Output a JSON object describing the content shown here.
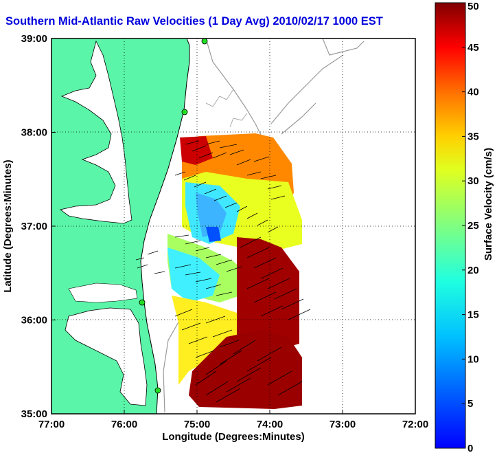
{
  "chart_data": {
    "type": "heatmap",
    "title": "Southern Mid-Atlantic Raw Velocities (1 Day Avg) 2010/02/17 1000 EST",
    "xlabel": "Longitude (Degrees:Minutes)",
    "ylabel": "Latitude (Degrees:Minutes)",
    "colorbar_label": "Surface Velocity (cm/s)",
    "xlim": [
      -77,
      -72
    ],
    "ylim": [
      35,
      39
    ],
    "x_ticks": [
      {
        "value": -77,
        "label": "77:00"
      },
      {
        "value": -76,
        "label": "76:00"
      },
      {
        "value": -75,
        "label": "75:00"
      },
      {
        "value": -74,
        "label": "74:00"
      },
      {
        "value": -73,
        "label": "73:00"
      },
      {
        "value": -72,
        "label": "72:00"
      }
    ],
    "y_ticks": [
      {
        "value": 35,
        "label": "35:00"
      },
      {
        "value": 36,
        "label": "36:00"
      },
      {
        "value": 37,
        "label": "37:00"
      },
      {
        "value": 38,
        "label": "38:00"
      },
      {
        "value": 39,
        "label": "39:00"
      }
    ],
    "colorbar": {
      "min": 0,
      "max": 50,
      "ticks": [
        0,
        5,
        10,
        15,
        20,
        25,
        30,
        35,
        40,
        45,
        50
      ],
      "colormap": "jet"
    },
    "grid": true,
    "land_color": "#5af5a8",
    "speed_regions": [
      {
        "zone": "northwest shelf",
        "speed_cm_s": 30
      },
      {
        "zone": "mid-shelf near 37N 74.7W",
        "speed_cm_s": 8
      },
      {
        "zone": "south of Chesapeake mouth",
        "speed_cm_s": 14
      },
      {
        "zone": "offshore 36N 73.7W",
        "speed_cm_s": 50
      },
      {
        "zone": "southern box near 35.3N 74.5W",
        "speed_cm_s": 50
      }
    ]
  }
}
